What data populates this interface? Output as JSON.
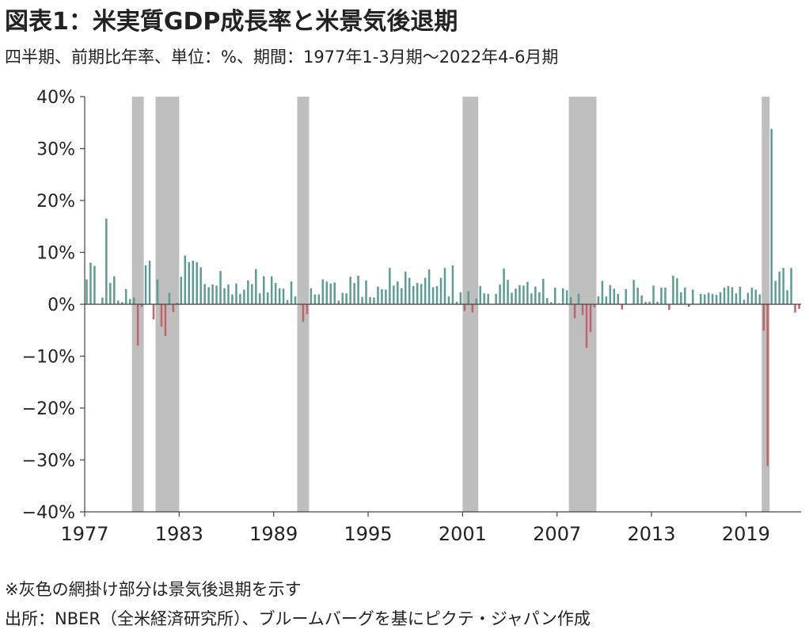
{
  "title": "図表1：米実質GDP成長率と米景気後退期",
  "subtitle": "四半期、前期比年率、単位：%、期間：1977年1-3月期～2022年4-6月期",
  "note": "※灰色の網掛け部分は景気後退期を示す",
  "source": "出所：NBER（全米経済研究所）、ブルームバーグを基にピクテ・ジャパン作成",
  "colors": {
    "positive": "#5b9c96",
    "negative": "#c0646a",
    "recession": "#bebebe",
    "axis": "#444444"
  },
  "chart_data": {
    "type": "bar",
    "title": "図表1：米実質GDP成長率と米景気後退期",
    "subtitle": "四半期、前期比年率、単位：%、期間：1977年1-3月期～2022年4-6月期",
    "xlabel": "",
    "ylabel": "",
    "ylim": [
      -40,
      40
    ],
    "ytick_values": [
      40,
      30,
      20,
      10,
      0,
      -10,
      -20,
      -30,
      -40
    ],
    "ytick_labels": [
      "40%",
      "30%",
      "20%",
      "10%",
      "0%",
      "−10%",
      "−20%",
      "−30%",
      "−40%"
    ],
    "xtick_values": [
      1977,
      1983,
      1989,
      1995,
      2001,
      2007,
      2013,
      2019
    ],
    "xtick_labels": [
      "1977",
      "1983",
      "1989",
      "1995",
      "2001",
      "2007",
      "2013",
      "2019"
    ],
    "xlim": [
      1977.0,
      2022.5
    ],
    "grid": false,
    "legend": "none",
    "start_quarter": "1977Q1",
    "end_quarter": "2022Q2",
    "recessions": [
      {
        "start": "1980Q1",
        "end": "1980Q3"
      },
      {
        "start": "1981Q3",
        "end": "1982Q4"
      },
      {
        "start": "1990Q3",
        "end": "1991Q1"
      },
      {
        "start": "2001Q1",
        "end": "2001Q4"
      },
      {
        "start": "2007Q4",
        "end": "2009Q2"
      },
      {
        "start": "2020Q1",
        "end": "2020Q2"
      }
    ],
    "series": [
      {
        "values": [
          4.8,
          8.0,
          7.4,
          0.0,
          1.3,
          16.5,
          4.1,
          5.4,
          0.7,
          0.4,
          2.9,
          1.0,
          1.3,
          -8.0,
          -0.5,
          7.5,
          8.4,
          -2.9,
          4.8,
          -4.3,
          -6.1,
          2.2,
          -1.5,
          0.3,
          5.3,
          9.4,
          8.1,
          8.4,
          8.1,
          7.1,
          3.9,
          3.3,
          3.8,
          3.6,
          6.4,
          3.1,
          3.8,
          1.9,
          4.0,
          2.0,
          2.8,
          4.6,
          3.9,
          6.8,
          2.1,
          5.4,
          2.3,
          5.4,
          4.1,
          3.1,
          3.0,
          0.8,
          4.4,
          1.5,
          0.0,
          -3.4,
          -1.9,
          3.1,
          1.9,
          1.9,
          4.8,
          4.4,
          4.0,
          4.2,
          0.7,
          2.2,
          2.1,
          5.3,
          4.1,
          5.5,
          1.4,
          4.6,
          1.4,
          1.3,
          3.4,
          2.9,
          2.8,
          7.0,
          3.6,
          4.4,
          3.1,
          6.3,
          5.1,
          3.5,
          4.1,
          3.9,
          5.1,
          6.7,
          3.3,
          3.5,
          5.1,
          7.0,
          1.5,
          7.5,
          0.5,
          2.3,
          -1.3,
          2.5,
          -1.6,
          1.1,
          3.5,
          2.1,
          2.0,
          0.1,
          2.0,
          3.8,
          6.9,
          4.7,
          2.2,
          3.0,
          3.7,
          3.6,
          4.3,
          2.1,
          3.4,
          2.3,
          4.9,
          1.2,
          0.4,
          3.2,
          0.2,
          3.1,
          2.7,
          1.4,
          -2.7,
          2.0,
          -2.1,
          -8.4,
          -5.4,
          -0.6,
          1.5,
          4.5,
          1.5,
          3.7,
          3.0,
          2.0,
          -1.0,
          2.9,
          -0.1,
          4.7,
          3.2,
          1.7,
          0.5,
          0.5,
          3.6,
          0.5,
          3.2,
          3.2,
          -1.1,
          5.5,
          5.0,
          2.3,
          3.2,
          -0.5,
          2.8,
          0.1,
          2.0,
          1.9,
          2.2,
          2.0,
          1.8,
          2.3,
          3.2,
          3.5,
          3.3,
          2.1,
          3.4,
          0.9,
          2.2,
          3.2,
          2.8,
          1.9,
          -5.1,
          -31.2,
          33.8,
          4.5,
          6.3,
          7.0,
          2.7,
          7.0,
          -1.6,
          -0.9
        ]
      }
    ]
  }
}
